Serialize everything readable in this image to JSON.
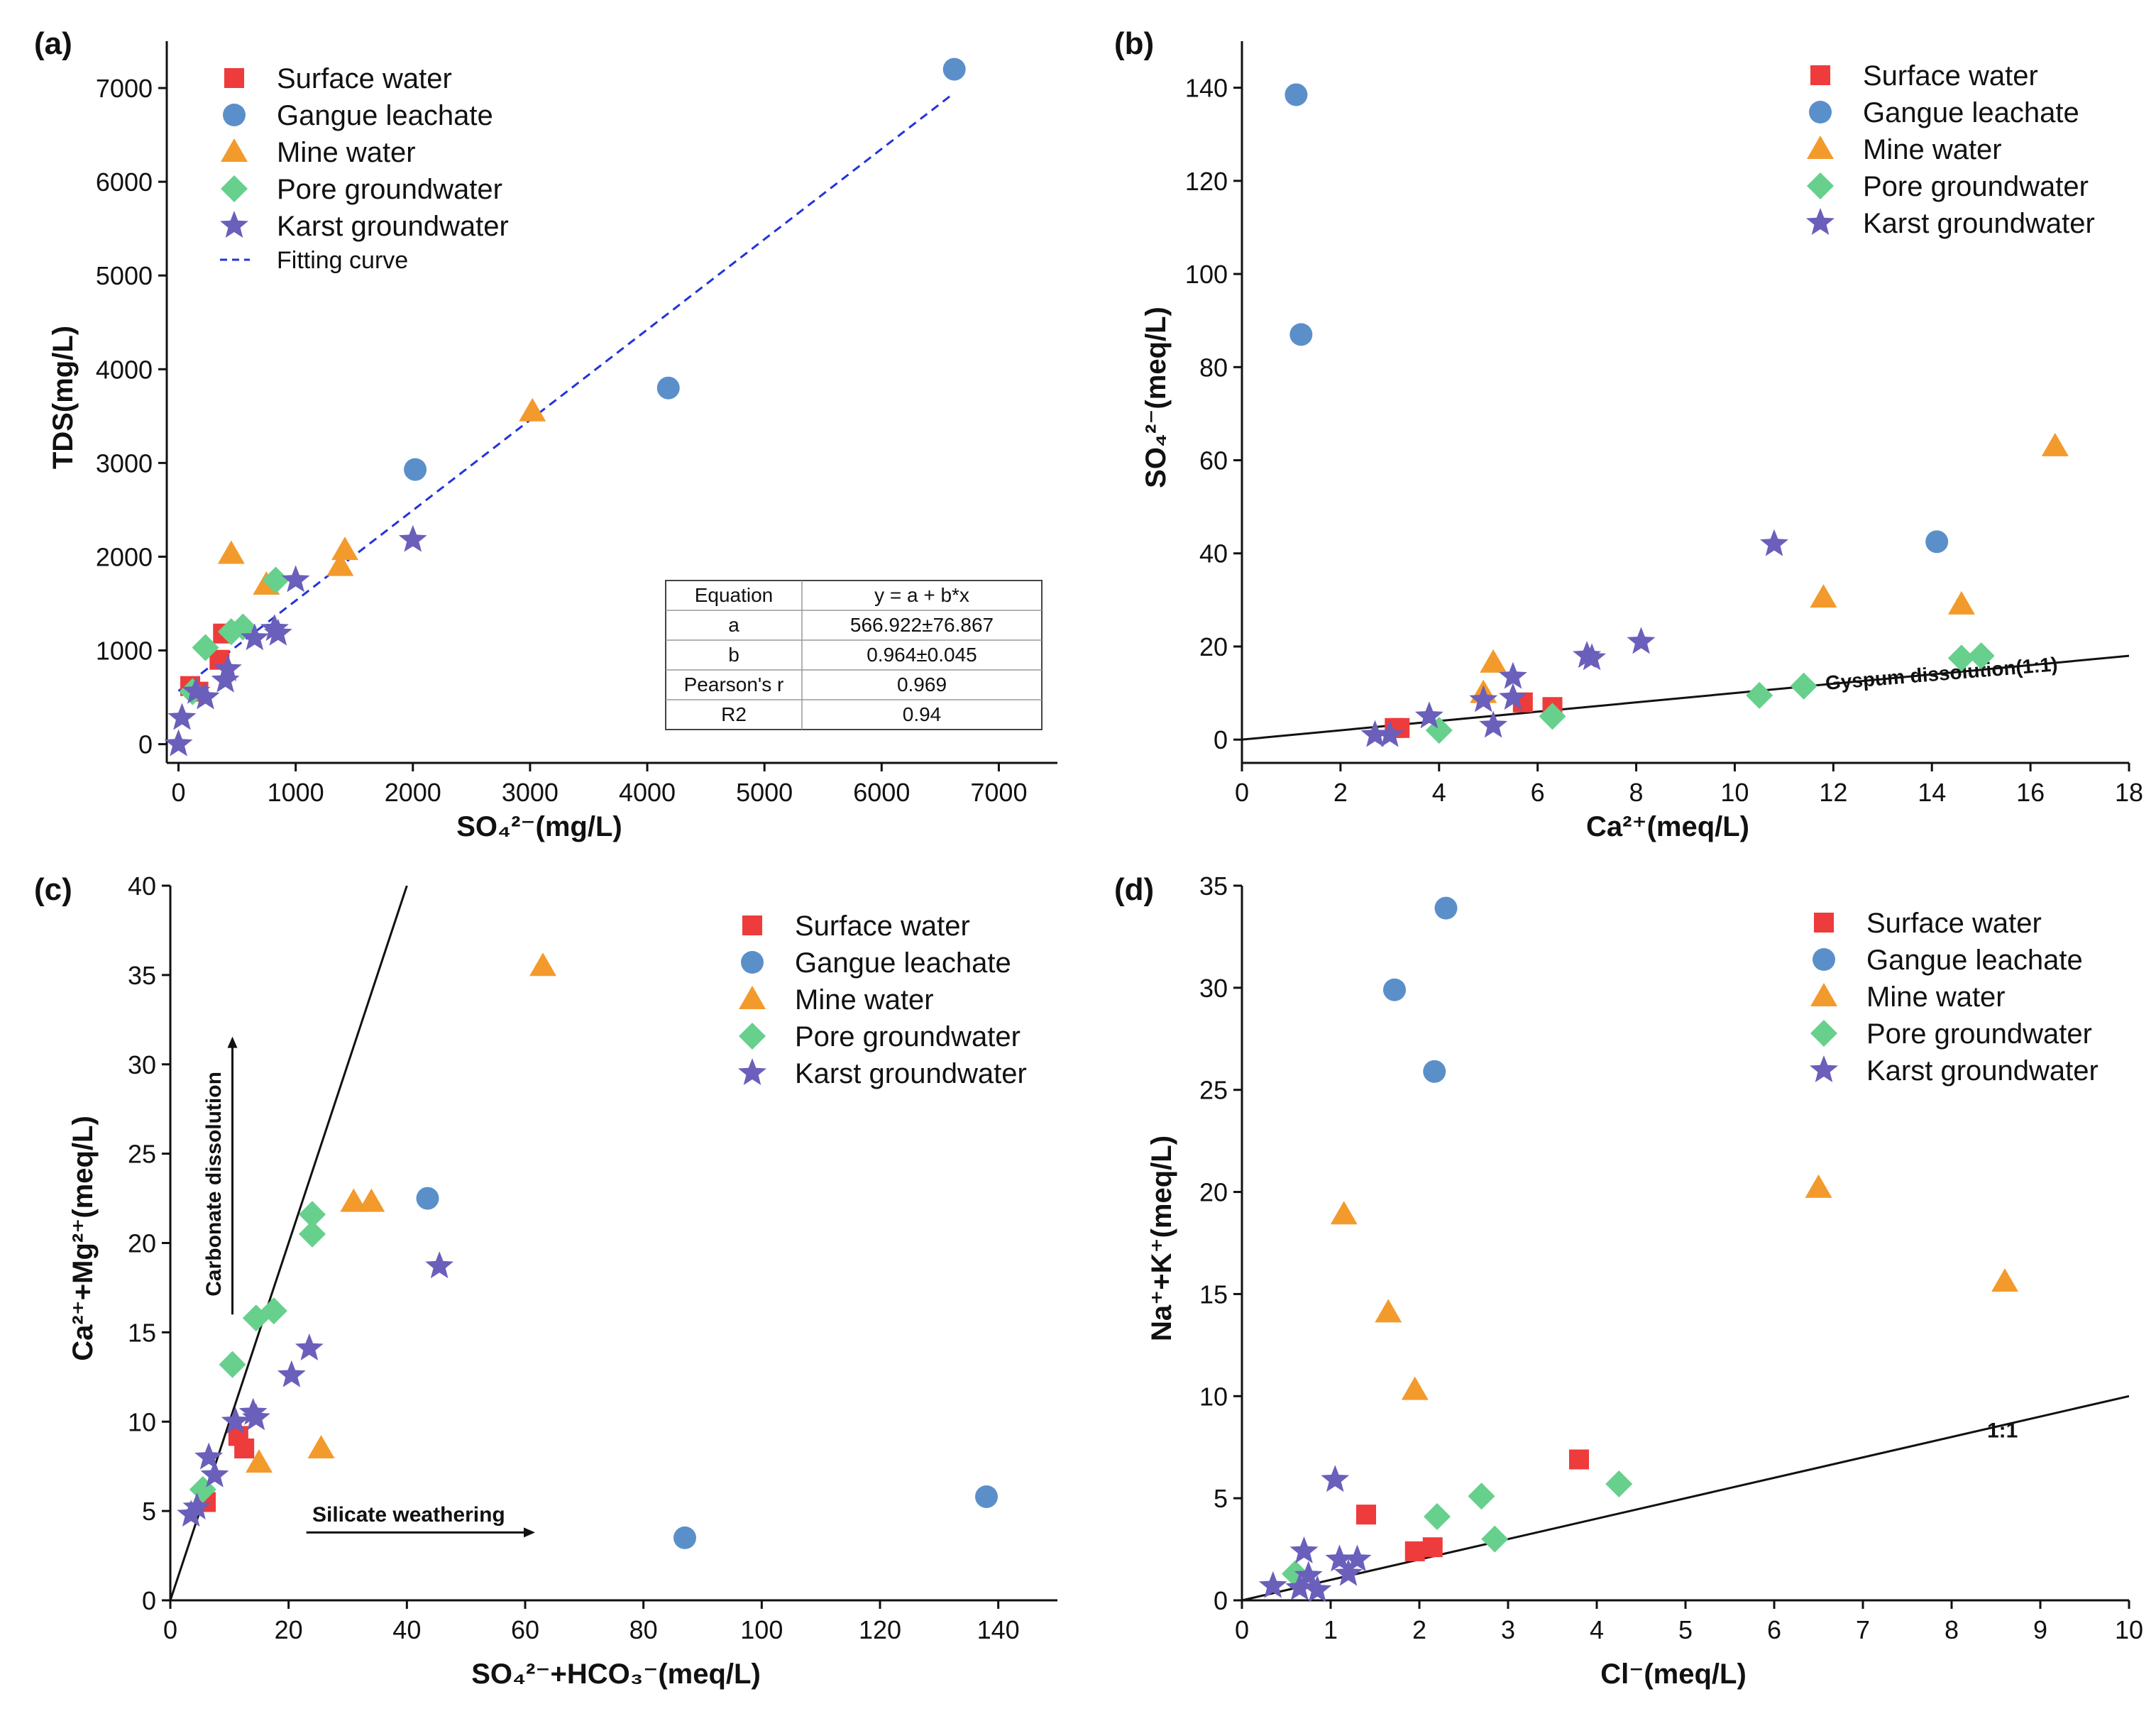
{
  "figure": {
    "legend_labels": [
      "Surface water",
      "Gangue leachate",
      "Mine water",
      "Pore groundwater",
      "Karst groundwater"
    ]
  },
  "chart_data": [
    {
      "id": "a",
      "panel_label": "(a)",
      "type": "scatter",
      "xlabel": "SO₄²⁻(mg/L)",
      "ylabel": "TDS(mg/L)",
      "xlim": [
        -100,
        7500
      ],
      "ylim": [
        -200,
        7500
      ],
      "xticks": [
        0,
        1000,
        2000,
        3000,
        4000,
        5000,
        6000,
        7000
      ],
      "yticks": [
        0,
        1000,
        2000,
        3000,
        4000,
        5000,
        6000,
        7000
      ],
      "legend_position": "top-left",
      "fit_label": "Fitting curve",
      "fit_line": {
        "x": [
          0,
          6600
        ],
        "y": [
          566.922,
          6929
        ]
      },
      "fit_table": {
        "rows": [
          [
            "Equation",
            "y = a + b*x"
          ],
          [
            "a",
            "566.922±76.867"
          ],
          [
            "b",
            "0.964±0.045"
          ],
          [
            "Pearson's r",
            "0.969"
          ],
          [
            "R2",
            "0.94"
          ]
        ]
      },
      "series": [
        {
          "name": "Surface water",
          "x": [
            100,
            170,
            350,
            380
          ],
          "y": [
            620,
            560,
            900,
            1180
          ]
        },
        {
          "name": "Gangue leachate",
          "x": [
            2020,
            4180,
            6620
          ],
          "y": [
            2930,
            3800,
            7200
          ]
        },
        {
          "name": "Mine water",
          "x": [
            450,
            750,
            1380,
            1420,
            3020
          ],
          "y": [
            2030,
            1700,
            1900,
            2070,
            3550
          ]
        },
        {
          "name": "Pore groundwater",
          "x": [
            120,
            230,
            450,
            550,
            830
          ],
          "y": [
            560,
            1030,
            1200,
            1250,
            1750
          ]
        },
        {
          "name": "Karst groundwater",
          "x": [
            0,
            30,
            150,
            230,
            400,
            420,
            650,
            820,
            850,
            1000,
            2000
          ],
          "y": [
            0,
            280,
            560,
            500,
            680,
            800,
            1130,
            1230,
            1180,
            1750,
            2180
          ]
        }
      ]
    },
    {
      "id": "b",
      "panel_label": "(b)",
      "type": "scatter",
      "xlabel": "Ca²⁺(meq/L)",
      "ylabel": "SO₄²⁻(meq/L)",
      "xlim": [
        0,
        18
      ],
      "ylim": [
        -5,
        150
      ],
      "xticks": [
        0,
        2,
        4,
        6,
        8,
        10,
        12,
        14,
        16,
        18
      ],
      "yticks": [
        0,
        20,
        40,
        60,
        80,
        100,
        120,
        140
      ],
      "legend_position": "top-right",
      "reference_line": {
        "label": "Gyspum dissolution(1:1)",
        "x": [
          0,
          18
        ],
        "y": [
          0,
          18
        ]
      },
      "series": [
        {
          "name": "Surface water",
          "x": [
            3.1,
            3.2,
            5.7,
            6.3
          ],
          "y": [
            2.5,
            2.5,
            8.0,
            7.0
          ]
        },
        {
          "name": "Gangue leachate",
          "x": [
            1.1,
            1.2,
            14.1
          ],
          "y": [
            138.5,
            87,
            42.5
          ]
        },
        {
          "name": "Mine water",
          "x": [
            4.9,
            5.1,
            11.8,
            14.6,
            16.5
          ],
          "y": [
            10,
            16.5,
            30.5,
            29,
            63
          ]
        },
        {
          "name": "Pore groundwater",
          "x": [
            4.0,
            6.3,
            10.5,
            11.4,
            14.6,
            15.0
          ],
          "y": [
            2.0,
            5.0,
            9.5,
            11.5,
            17.5,
            18
          ]
        },
        {
          "name": "Karst groundwater",
          "x": [
            2.7,
            3.0,
            3.8,
            4.9,
            5.1,
            5.5,
            5.5,
            7.0,
            7.1,
            8.1,
            10.8
          ],
          "y": [
            1,
            1,
            5,
            8.5,
            3,
            13.5,
            9,
            18,
            17.5,
            21,
            42
          ]
        }
      ]
    },
    {
      "id": "c",
      "panel_label": "(c)",
      "type": "scatter",
      "xlabel": "SO₄²⁻+HCO₃⁻(meq/L)",
      "ylabel": "Ca²⁺+Mg²⁺(meq/L)",
      "xlim": [
        0,
        150
      ],
      "ylim": [
        0,
        40
      ],
      "xticks": [
        0,
        20,
        40,
        60,
        80,
        100,
        120,
        140
      ],
      "yticks": [
        0,
        5,
        10,
        15,
        20,
        25,
        30,
        35,
        40
      ],
      "legend_position": "top-right",
      "reference_line": {
        "x": [
          0,
          40
        ],
        "y": [
          0,
          40
        ]
      },
      "annotations": {
        "vertical": "Carbonate dissolution",
        "horizontal": "Silicate weathering"
      },
      "series": [
        {
          "name": "Surface water",
          "x": [
            6,
            11.5,
            12.5
          ],
          "y": [
            5.5,
            9.2,
            8.5
          ]
        },
        {
          "name": "Gangue leachate",
          "x": [
            43.5,
            87,
            138
          ],
          "y": [
            22.5,
            3.5,
            5.8
          ]
        },
        {
          "name": "Mine water",
          "x": [
            15,
            25.5,
            31,
            34,
            63
          ],
          "y": [
            7.7,
            8.5,
            22.3,
            22.3,
            35.5
          ]
        },
        {
          "name": "Pore groundwater",
          "x": [
            5.5,
            10.5,
            14.5,
            17.5,
            24,
            24
          ],
          "y": [
            6.2,
            13.2,
            15.8,
            16.2,
            20.5,
            21.6
          ]
        },
        {
          "name": "Karst groundwater",
          "x": [
            3.5,
            4.5,
            6.5,
            7.5,
            11,
            14,
            14.5,
            20.5,
            23.5,
            45.5
          ],
          "y": [
            4.8,
            5.2,
            8.0,
            7.0,
            10,
            10.5,
            10.2,
            12.6,
            14.1,
            18.7
          ]
        }
      ]
    },
    {
      "id": "d",
      "panel_label": "(d)",
      "type": "scatter",
      "xlabel": "Cl⁻(meq/L)",
      "ylabel": "Na⁺+K⁺(meq/L)",
      "xlim": [
        0,
        10
      ],
      "ylim": [
        0,
        35
      ],
      "xticks": [
        0,
        1,
        2,
        3,
        4,
        5,
        6,
        7,
        8,
        9,
        10
      ],
      "yticks": [
        0,
        5,
        10,
        15,
        20,
        25,
        30,
        35
      ],
      "legend_position": "top-right",
      "reference_line": {
        "label": "1:1",
        "x": [
          0,
          10
        ],
        "y": [
          0,
          10
        ]
      },
      "series": [
        {
          "name": "Surface water",
          "x": [
            1.4,
            1.95,
            2.15,
            3.8
          ],
          "y": [
            4.2,
            2.4,
            2.6,
            6.9
          ]
        },
        {
          "name": "Gangue leachate",
          "x": [
            1.72,
            2.17,
            2.3
          ],
          "y": [
            29.9,
            25.9,
            33.9
          ]
        },
        {
          "name": "Mine water",
          "x": [
            1.15,
            1.65,
            1.95,
            6.5,
            8.6
          ],
          "y": [
            18.9,
            14.1,
            10.3,
            20.2,
            15.6
          ]
        },
        {
          "name": "Pore groundwater",
          "x": [
            0.6,
            2.2,
            2.7,
            2.85,
            4.25
          ],
          "y": [
            1.3,
            4.1,
            5.1,
            3.0,
            5.7
          ]
        },
        {
          "name": "Karst groundwater",
          "x": [
            0.35,
            0.65,
            0.7,
            0.75,
            0.85,
            1.05,
            1.1,
            1.2,
            1.3
          ],
          "y": [
            0.7,
            0.6,
            2.4,
            1.2,
            0.5,
            5.9,
            2.0,
            1.3,
            2.0
          ]
        }
      ]
    }
  ]
}
